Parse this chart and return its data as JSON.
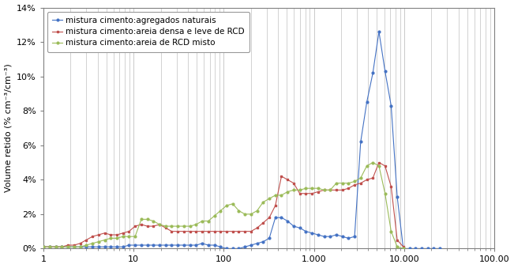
{
  "title": "",
  "ylabel": "Volume retido (% cm⁻³/cm⁻³)",
  "xlabel": "",
  "xlim_log": [
    1,
    100000
  ],
  "ylim": [
    0,
    0.14
  ],
  "yticks": [
    0,
    0.02,
    0.04,
    0.06,
    0.08,
    0.1,
    0.12,
    0.14
  ],
  "ytick_labels": [
    "0%",
    "2%",
    "4%",
    "6%",
    "8%",
    "10%",
    "12%",
    "14%"
  ],
  "xtick_positions": [
    1,
    10,
    100,
    1000,
    10000,
    100000
  ],
  "xtick_labels": [
    "1",
    "10",
    "100",
    "1.000",
    "10.000",
    "100.00"
  ],
  "legend": [
    {
      "label": "mistura cimento:agregados naturais",
      "color": "#4472C4"
    },
    {
      "label": "mistura cimento:areia densa e leve de RCD",
      "color": "#C0504D"
    },
    {
      "label": "mistura cimento:areia de RCD misto",
      "color": "#9BBB59"
    }
  ],
  "background_color": "#ffffff",
  "grid_color": "#C0C0C0",
  "spine_color": "#808080",
  "blue_x": [
    1.0,
    1.17,
    1.37,
    1.6,
    1.87,
    2.19,
    2.56,
    2.99,
    3.5,
    4.09,
    4.78,
    5.59,
    6.53,
    7.63,
    8.92,
    10.4,
    12.2,
    14.2,
    16.6,
    19.4,
    22.7,
    26.5,
    30.9,
    36.2,
    42.3,
    49.4,
    57.7,
    67.4,
    78.8,
    92.0,
    107.5,
    125.6,
    146.8,
    171.5,
    200.4,
    234.2,
    273.6,
    319.7,
    373.5,
    436.3,
    509.8,
    595.7,
    696.0,
    813.1,
    950.1,
    1110.0,
    1296.7,
    1515.0,
    1769.8,
    2067.3,
    2415.0,
    2821.6,
    3295.6,
    3850.1,
    4498.3,
    5254.7,
    6139.2,
    7171.8,
    8378.0,
    9785.8,
    11430.0,
    13354.0,
    15599.0,
    18223.0,
    21290.0,
    24872.0
  ],
  "blue_y": [
    0.001,
    0.001,
    0.001,
    0.001,
    0.001,
    0.001,
    0.001,
    0.001,
    0.001,
    0.001,
    0.001,
    0.001,
    0.001,
    0.001,
    0.002,
    0.002,
    0.002,
    0.002,
    0.002,
    0.002,
    0.002,
    0.002,
    0.002,
    0.002,
    0.002,
    0.002,
    0.003,
    0.002,
    0.002,
    0.001,
    0.0,
    0.0,
    0.0,
    0.001,
    0.002,
    0.003,
    0.004,
    0.006,
    0.018,
    0.018,
    0.016,
    0.013,
    0.012,
    0.01,
    0.009,
    0.008,
    0.007,
    0.007,
    0.008,
    0.007,
    0.006,
    0.007,
    0.062,
    0.085,
    0.102,
    0.126,
    0.103,
    0.083,
    0.03,
    0.0,
    0.0,
    0.0,
    0.0,
    0.0,
    0.0,
    0.0
  ],
  "red_x": [
    1.0,
    1.17,
    1.37,
    1.6,
    1.87,
    2.19,
    2.56,
    2.99,
    3.5,
    4.09,
    4.78,
    5.59,
    6.53,
    7.63,
    8.92,
    10.4,
    12.2,
    14.2,
    16.6,
    19.4,
    22.7,
    26.5,
    30.9,
    36.2,
    42.3,
    49.4,
    57.7,
    67.4,
    78.8,
    92.0,
    107.5,
    125.6,
    146.8,
    171.5,
    200.4,
    234.2,
    273.6,
    319.7,
    373.5,
    436.3,
    509.8,
    595.7,
    696.0,
    813.1,
    950.1,
    1110.0,
    1296.7,
    1515.0,
    1769.8,
    2067.3,
    2415.0,
    2821.6,
    3295.6,
    3850.1,
    4498.3,
    5254.7,
    6139.2,
    7171.8,
    8378.0,
    9785.8
  ],
  "red_y": [
    0.001,
    0.001,
    0.001,
    0.001,
    0.002,
    0.002,
    0.003,
    0.005,
    0.007,
    0.008,
    0.009,
    0.008,
    0.008,
    0.009,
    0.01,
    0.013,
    0.014,
    0.013,
    0.013,
    0.014,
    0.012,
    0.01,
    0.01,
    0.01,
    0.01,
    0.01,
    0.01,
    0.01,
    0.01,
    0.01,
    0.01,
    0.01,
    0.01,
    0.01,
    0.01,
    0.012,
    0.015,
    0.018,
    0.025,
    0.042,
    0.04,
    0.038,
    0.032,
    0.032,
    0.032,
    0.033,
    0.034,
    0.034,
    0.034,
    0.034,
    0.035,
    0.037,
    0.038,
    0.04,
    0.041,
    0.05,
    0.048,
    0.036,
    0.005,
    0.001
  ],
  "green_x": [
    1.0,
    1.17,
    1.37,
    1.6,
    1.87,
    2.19,
    2.56,
    2.99,
    3.5,
    4.09,
    4.78,
    5.59,
    6.53,
    7.63,
    8.92,
    10.4,
    12.2,
    14.2,
    16.6,
    19.4,
    22.7,
    26.5,
    30.9,
    36.2,
    42.3,
    49.4,
    57.7,
    67.4,
    78.8,
    92.0,
    107.5,
    125.6,
    146.8,
    171.5,
    200.4,
    234.2,
    273.6,
    319.7,
    373.5,
    436.3,
    509.8,
    595.7,
    696.0,
    813.1,
    950.1,
    1110.0,
    1296.7,
    1515.0,
    1769.8,
    2067.3,
    2415.0,
    2821.6,
    3295.6,
    3850.1,
    4498.3,
    5254.7,
    6139.2,
    7171.8,
    8378.0,
    9785.8
  ],
  "green_y": [
    0.001,
    0.001,
    0.001,
    0.001,
    0.001,
    0.001,
    0.001,
    0.002,
    0.003,
    0.004,
    0.005,
    0.006,
    0.006,
    0.007,
    0.007,
    0.007,
    0.017,
    0.017,
    0.016,
    0.014,
    0.013,
    0.013,
    0.013,
    0.013,
    0.013,
    0.014,
    0.016,
    0.016,
    0.019,
    0.022,
    0.025,
    0.026,
    0.022,
    0.02,
    0.02,
    0.022,
    0.027,
    0.029,
    0.031,
    0.031,
    0.033,
    0.034,
    0.034,
    0.035,
    0.035,
    0.035,
    0.034,
    0.034,
    0.038,
    0.038,
    0.038,
    0.039,
    0.041,
    0.048,
    0.05,
    0.048,
    0.032,
    0.01,
    0.001,
    0.0
  ]
}
